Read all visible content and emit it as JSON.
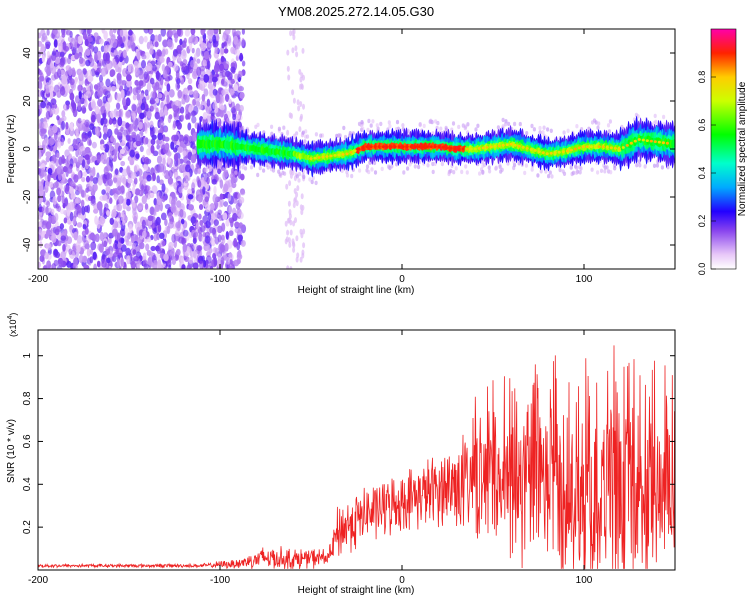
{
  "title": "YM08.2025.272.14.05.G30",
  "chart_data": [
    {
      "type": "heatmap",
      "name": "spectrogram",
      "xlabel": "Height of straight line (km)",
      "ylabel": "Frequency (Hz)",
      "xlim": [
        -200,
        150
      ],
      "ylim": [
        -50,
        50
      ],
      "xticks": [
        -200,
        -100,
        0,
        100
      ],
      "yticks": [
        -40,
        -20,
        0,
        20,
        40
      ],
      "colorbar": {
        "label": "Normalized spectral amplitude",
        "range": [
          0,
          1
        ],
        "ticks": [
          "0.0",
          "0.2",
          "0.4",
          "0.6",
          "0.8"
        ]
      },
      "ridge": [
        {
          "x": -110,
          "y": 2
        },
        {
          "x": -100,
          "y": 2
        },
        {
          "x": -90,
          "y": 1
        },
        {
          "x": -80,
          "y": 0
        },
        {
          "x": -70,
          "y": -1
        },
        {
          "x": -60,
          "y": -2
        },
        {
          "x": -50,
          "y": -4
        },
        {
          "x": -40,
          "y": -3
        },
        {
          "x": -30,
          "y": -2
        },
        {
          "x": -20,
          "y": 1
        },
        {
          "x": -10,
          "y": 1
        },
        {
          "x": 0,
          "y": 1
        },
        {
          "x": 10,
          "y": 1
        },
        {
          "x": 20,
          "y": 1
        },
        {
          "x": 30,
          "y": 0
        },
        {
          "x": 40,
          "y": 0
        },
        {
          "x": 50,
          "y": 1
        },
        {
          "x": 60,
          "y": 2
        },
        {
          "x": 70,
          "y": 0
        },
        {
          "x": 80,
          "y": -2
        },
        {
          "x": 90,
          "y": -1
        },
        {
          "x": 100,
          "y": 1
        },
        {
          "x": 110,
          "y": 1
        },
        {
          "x": 120,
          "y": 0
        },
        {
          "x": 130,
          "y": 4
        },
        {
          "x": 140,
          "y": 3
        },
        {
          "x": 150,
          "y": 2
        }
      ],
      "noise_region_x": [
        -200,
        -95
      ]
    },
    {
      "type": "line",
      "name": "snr",
      "xlabel": "Height of straight line (km)",
      "ylabel": "SNR (10 * v/v)",
      "y_multiplier": "(x10",
      "y_multiplier_exp": "4",
      "y_multiplier_close": ")",
      "xlim": [
        -200,
        150
      ],
      "ylim": [
        0,
        1.12
      ],
      "xticks": [
        -200,
        -100,
        0,
        100
      ],
      "yticks": [
        0.2,
        0.4,
        0.6,
        0.8,
        1
      ],
      "color": "#ee2222",
      "envelope": [
        {
          "x": -200,
          "base": 0.02,
          "spread": 0.01
        },
        {
          "x": -110,
          "base": 0.02,
          "spread": 0.01
        },
        {
          "x": -90,
          "base": 0.03,
          "spread": 0.03
        },
        {
          "x": -75,
          "base": 0.06,
          "spread": 0.07
        },
        {
          "x": -60,
          "base": 0.05,
          "spread": 0.06
        },
        {
          "x": -40,
          "base": 0.06,
          "spread": 0.05
        },
        {
          "x": -35,
          "base": 0.18,
          "spread": 0.16
        },
        {
          "x": -20,
          "base": 0.26,
          "spread": 0.16
        },
        {
          "x": 0,
          "base": 0.32,
          "spread": 0.16
        },
        {
          "x": 20,
          "base": 0.38,
          "spread": 0.2
        },
        {
          "x": 40,
          "base": 0.42,
          "spread": 0.32
        },
        {
          "x": 60,
          "base": 0.4,
          "spread": 0.42
        },
        {
          "x": 80,
          "base": 0.38,
          "spread": 0.5
        },
        {
          "x": 100,
          "base": 0.36,
          "spread": 0.5
        },
        {
          "x": 120,
          "base": 0.35,
          "spread": 0.55
        },
        {
          "x": 150,
          "base": 0.35,
          "spread": 0.45
        }
      ]
    }
  ]
}
